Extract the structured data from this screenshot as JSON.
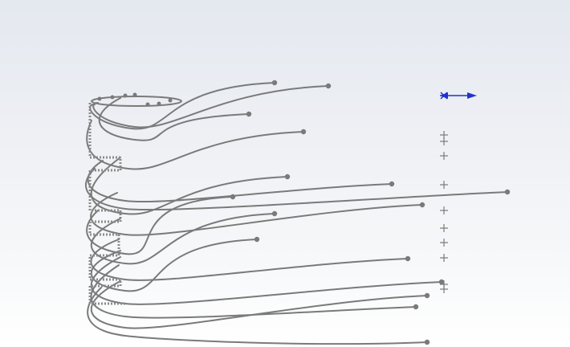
{
  "viewport": {
    "background_top": "#e4e8ef",
    "background_bottom": "#ffffff"
  },
  "sketch": {
    "curve_color": "#7a7a7a",
    "endpoint_color": "#7a7a7a",
    "construction_mark_color": "#8a8a8a",
    "point_marker_color": "#7a7a7a",
    "curve_count": 14,
    "endpoint_count": 14,
    "point_marker_count": 10
  },
  "triad": {
    "icon": "coordinate-triad-icon",
    "color": "#2233cc"
  }
}
